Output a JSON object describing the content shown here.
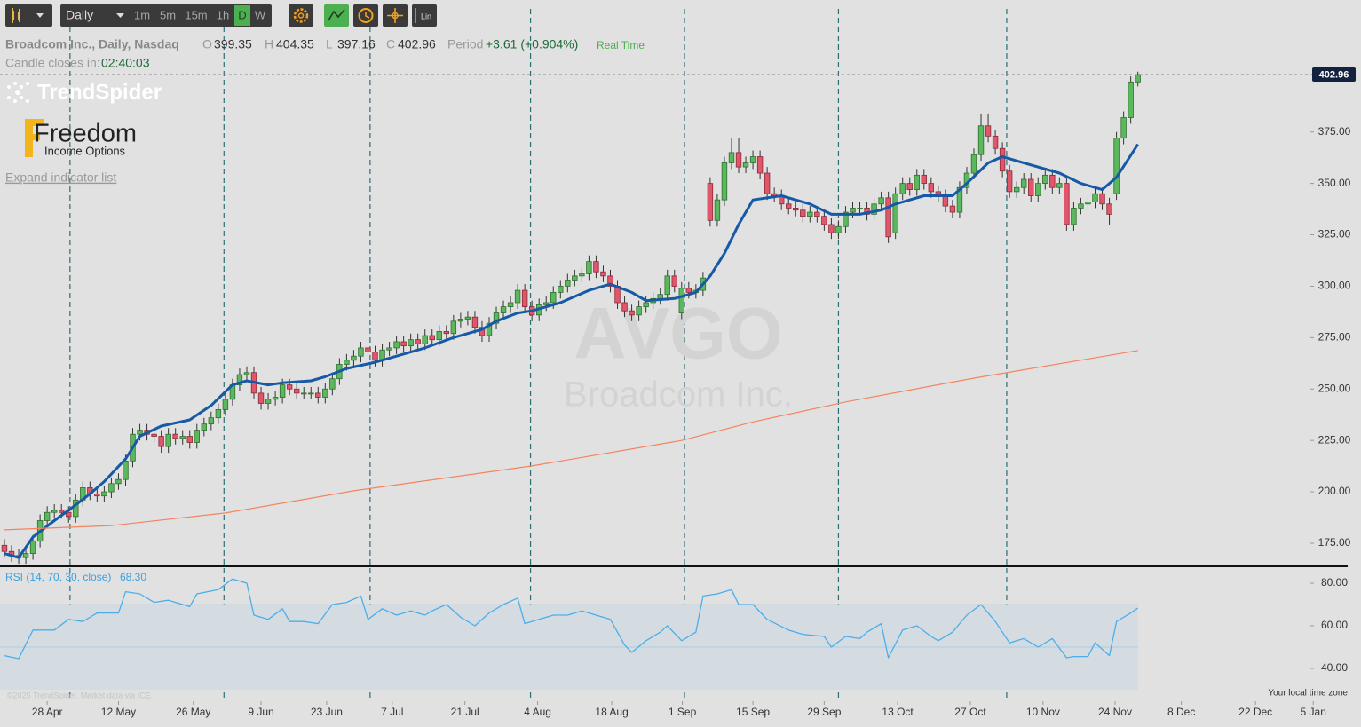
{
  "toolbar": {
    "interval": "Daily",
    "buttons": [
      "1m",
      "5m",
      "15m",
      "1h",
      "D",
      "W"
    ],
    "scale": "Lin"
  },
  "header": {
    "symbol": "Broadcom Inc., Daily, Nasdaq",
    "o_label": "O",
    "h_label": "H",
    "l_label": "L",
    "c_label": "C",
    "period_label": "Period",
    "period_change": "+3.61 (+0.904%)",
    "realtime": "Real Time",
    "countdown_label": "Candle closes in:",
    "countdown": "02:40:03"
  },
  "branding": {
    "spider": "TrendSpider",
    "freedom": "Freedom",
    "income": "Income Options",
    "expand": "Expand indicator list"
  },
  "watermark": {
    "ticker": "AVGO",
    "name": "Broadcom Inc."
  },
  "footer": {
    "copyright": "©2025 TrendSpider. Market data via ICE.",
    "timezone": "Your local time zone"
  },
  "chart_data": [
    {
      "type": "candlestick",
      "up_color": "#5cb85c",
      "down_color": "#e0566a",
      "open": [
        174,
        171,
        169,
        168,
        170,
        176,
        186,
        190,
        191,
        190,
        188,
        196,
        202,
        199,
        198,
        200,
        204,
        206,
        215,
        228,
        230,
        228,
        227,
        222,
        228,
        226,
        227,
        224,
        230,
        233,
        236,
        240,
        245,
        252,
        257,
        258,
        248,
        243,
        245,
        246,
        252,
        250,
        248,
        248,
        248,
        246,
        250,
        255,
        262,
        264,
        266,
        270,
        268,
        264,
        269,
        270,
        273,
        271,
        274,
        272,
        276,
        274,
        278,
        277,
        283,
        284,
        285,
        280,
        276,
        282,
        287,
        290,
        292,
        298,
        290,
        286,
        291,
        292,
        297,
        300,
        303,
        305,
        306,
        312,
        307,
        305,
        300,
        292,
        288,
        286,
        290,
        292,
        294,
        296,
        305,
        287,
        299,
        297,
        298,
        350,
        332,
        342,
        360,
        365,
        358,
        360,
        363,
        355,
        345,
        344,
        340,
        338,
        337,
        334,
        336,
        334,
        330,
        326,
        329,
        336,
        338,
        338,
        335,
        340,
        343,
        326,
        345,
        350,
        347,
        354,
        350,
        346,
        344,
        339,
        336,
        348,
        355,
        364,
        378,
        373,
        367,
        356,
        346,
        348,
        352,
        344,
        350,
        354,
        348,
        350,
        330,
        338,
        340,
        341,
        345,
        340,
        345,
        372,
        382,
        399.35
      ],
      "high": [
        177,
        174,
        172,
        173,
        179,
        189,
        193,
        194,
        194,
        193,
        199,
        205,
        205,
        202,
        203,
        207,
        209,
        218,
        231,
        233,
        233,
        231,
        230,
        231,
        231,
        230,
        230,
        233,
        236,
        239,
        243,
        248,
        255,
        260,
        261,
        261,
        251,
        248,
        249,
        255,
        255,
        253,
        251,
        251,
        251,
        253,
        258,
        265,
        267,
        269,
        273,
        273,
        271,
        272,
        273,
        276,
        276,
        277,
        277,
        279,
        279,
        281,
        281,
        286,
        287,
        288,
        288,
        283,
        285,
        290,
        293,
        295,
        301,
        301,
        293,
        294,
        295,
        300,
        303,
        306,
        308,
        309,
        315,
        315,
        310,
        308,
        303,
        295,
        291,
        293,
        295,
        297,
        299,
        308,
        308,
        302,
        302,
        301,
        307,
        353,
        345,
        363,
        372,
        372,
        363,
        366,
        366,
        358,
        348,
        347,
        343,
        341,
        340,
        339,
        339,
        337,
        333,
        332,
        339,
        341,
        341,
        341,
        343,
        346,
        346,
        348,
        353,
        353,
        357,
        357,
        353,
        349,
        347,
        342,
        351,
        358,
        367,
        384,
        384,
        376,
        370,
        359,
        351,
        355,
        355,
        353,
        357,
        357,
        353,
        353,
        341,
        343,
        344,
        348,
        348,
        343,
        375,
        385,
        402,
        404.35
      ],
      "low": [
        168,
        166,
        165,
        165,
        167,
        173,
        183,
        187,
        187,
        185,
        185,
        193,
        196,
        195,
        195,
        197,
        201,
        203,
        212,
        225,
        225,
        224,
        219,
        219,
        223,
        223,
        221,
        221,
        227,
        230,
        233,
        237,
        242,
        249,
        254,
        245,
        240,
        240,
        242,
        243,
        247,
        245,
        245,
        245,
        243,
        243,
        247,
        252,
        259,
        261,
        263,
        265,
        261,
        261,
        266,
        267,
        268,
        268,
        269,
        269,
        271,
        271,
        274,
        274,
        280,
        281,
        277,
        273,
        273,
        279,
        284,
        287,
        289,
        287,
        283,
        283,
        288,
        289,
        294,
        297,
        300,
        302,
        303,
        304,
        302,
        297,
        289,
        285,
        283,
        283,
        287,
        289,
        291,
        293,
        297,
        284,
        294,
        294,
        295,
        329,
        329,
        339,
        357,
        355,
        355,
        357,
        352,
        342,
        341,
        337,
        335,
        334,
        331,
        331,
        331,
        327,
        323,
        323,
        326,
        333,
        335,
        332,
        332,
        337,
        321,
        323,
        342,
        344,
        344,
        347,
        343,
        341,
        336,
        333,
        333,
        345,
        352,
        361,
        370,
        364,
        353,
        343,
        343,
        345,
        341,
        341,
        347,
        345,
        345,
        327,
        327,
        335,
        337,
        338,
        337,
        330,
        342,
        369,
        379,
        397.16
      ],
      "close": [
        171,
        169,
        168,
        170,
        176,
        186,
        190,
        191,
        190,
        188,
        196,
        202,
        199,
        198,
        200,
        204,
        206,
        215,
        228,
        230,
        228,
        227,
        222,
        228,
        226,
        227,
        224,
        230,
        233,
        236,
        240,
        245,
        252,
        257,
        258,
        248,
        243,
        245,
        246,
        252,
        250,
        248,
        248,
        248,
        246,
        250,
        255,
        262,
        264,
        266,
        270,
        268,
        264,
        269,
        270,
        273,
        271,
        274,
        272,
        276,
        274,
        278,
        277,
        283,
        284,
        285,
        280,
        276,
        282,
        287,
        290,
        292,
        298,
        290,
        286,
        291,
        292,
        297,
        300,
        303,
        305,
        306,
        312,
        307,
        305,
        300,
        292,
        288,
        286,
        290,
        292,
        294,
        296,
        305,
        300,
        299,
        297,
        298,
        304,
        332,
        342,
        360,
        365,
        358,
        360,
        363,
        355,
        345,
        344,
        340,
        338,
        337,
        334,
        336,
        334,
        330,
        326,
        329,
        336,
        338,
        338,
        335,
        340,
        343,
        324,
        345,
        350,
        347,
        354,
        350,
        346,
        344,
        339,
        336,
        348,
        355,
        364,
        378,
        373,
        367,
        356,
        346,
        348,
        352,
        344,
        350,
        354,
        348,
        350,
        330,
        338,
        340,
        341,
        345,
        340,
        335,
        372,
        382,
        399.35,
        402.96
      ],
      "overlays": [
        {
          "type": "line",
          "color": "#1659a6",
          "line_width": 3,
          "x": [
            0,
            2,
            4,
            7,
            9,
            12,
            14,
            17,
            19,
            22,
            26,
            29,
            32,
            34,
            37,
            39,
            43,
            45,
            48,
            52,
            55,
            59,
            63,
            67,
            69,
            72,
            74,
            78,
            82,
            85,
            88,
            90,
            94,
            97,
            99,
            101,
            103,
            105,
            109,
            113,
            116,
            120,
            123,
            125,
            129,
            133,
            135,
            138,
            140,
            144,
            148,
            151,
            154,
            156,
            159
          ],
          "values": [
            170,
            168,
            178,
            186,
            191,
            199,
            205,
            216,
            227,
            232,
            235,
            242,
            252,
            254,
            252,
            253,
            254,
            256,
            260,
            263,
            266,
            270,
            275,
            279,
            283,
            287,
            288,
            292,
            298,
            301,
            297,
            293,
            294,
            297,
            305,
            316,
            330,
            342,
            344,
            340,
            335,
            335,
            337,
            340,
            344,
            344,
            350,
            360,
            363,
            359,
            355,
            350,
            347,
            353,
            369
          ]
        },
        {
          "type": "line",
          "color": "#f4845f",
          "line_width": 1.2,
          "x": [
            0,
            15,
            31,
            49,
            74,
            95,
            105,
            118,
            136,
            159
          ],
          "values": [
            181.5,
            183.6,
            189.7,
            200.5,
            212.6,
            225,
            234,
            243.7,
            255.3,
            268.7
          ]
        }
      ],
      "event_lines": [
        9.2,
        30.8,
        51.3,
        73.8,
        95.4,
        117,
        140.6
      ],
      "xlim": [
        -0.62,
        190.3
      ],
      "ylim": [
        164.2,
        439.2
      ],
      "yticks": [
        {
          "value": 175,
          "label": "175.00"
        },
        {
          "value": 200,
          "label": "200.00"
        },
        {
          "value": 225,
          "label": "225.00"
        },
        {
          "value": 250,
          "label": "250.00"
        },
        {
          "value": 275,
          "label": "275.00"
        },
        {
          "value": 300,
          "label": "300.00"
        },
        {
          "value": 325,
          "label": "325.00"
        },
        {
          "value": 350,
          "label": "350.00"
        },
        {
          "value": 375,
          "label": "375.00"
        }
      ]
    },
    {
      "type": "line",
      "label": "RSI (14, 70, 30, close)",
      "color": "#4aaeea",
      "value_label": "68.30",
      "x": [
        0,
        2,
        4,
        7,
        9,
        11,
        13,
        16,
        17,
        19,
        21,
        23,
        26,
        27,
        30,
        32,
        34,
        35,
        37,
        39,
        40,
        42,
        44,
        46,
        48,
        50,
        51,
        53,
        55,
        57,
        59,
        60,
        62,
        64,
        66,
        68,
        70,
        72,
        73,
        75,
        77,
        79,
        81,
        83,
        85,
        87,
        88,
        90,
        92,
        93,
        95,
        97,
        98,
        100,
        102,
        103,
        105,
        107,
        110,
        112,
        115,
        116,
        118,
        120,
        121,
        123,
        124,
        126,
        128,
        130,
        131,
        133,
        135,
        137,
        139,
        141,
        143,
        145,
        147,
        149,
        150,
        152,
        153,
        155,
        156,
        158,
        159
      ],
      "values": [
        46,
        44.6,
        58,
        58,
        63,
        62,
        66,
        66,
        76,
        75,
        71,
        72,
        69,
        75,
        77,
        82,
        80,
        65,
        63,
        68,
        62,
        62,
        61,
        70,
        71,
        74,
        63,
        68,
        65,
        67,
        65,
        67,
        70,
        64,
        60,
        66,
        70,
        73,
        61,
        63,
        65,
        65,
        67,
        65,
        63,
        51,
        47.5,
        53,
        57,
        60,
        53,
        57,
        74,
        75,
        77,
        70,
        70,
        63,
        58,
        56,
        55,
        50,
        55,
        54,
        57,
        61,
        45,
        58,
        60,
        55,
        53,
        57,
        65,
        70,
        62,
        52,
        54,
        50,
        54,
        45,
        45.6,
        45.6,
        52,
        46,
        62,
        66,
        68.3
      ],
      "bands": [
        30,
        70
      ],
      "midline": 50,
      "xlim": [
        -0.62,
        190.3
      ],
      "ylim": [
        24.6,
        87.1
      ],
      "yticks": [
        {
          "value": 40,
          "label": "40.00"
        },
        {
          "value": 60,
          "label": "60.00"
        },
        {
          "value": 80,
          "label": "80.00"
        }
      ],
      "xticks": [
        {
          "value": 6,
          "label": "28 Apr"
        },
        {
          "value": 16,
          "label": "12 May"
        },
        {
          "value": 26.5,
          "label": "26 May"
        },
        {
          "value": 36,
          "label": "9 Jun"
        },
        {
          "value": 45.2,
          "label": "23 Jun"
        },
        {
          "value": 54.4,
          "label": "7 Jul"
        },
        {
          "value": 64.6,
          "label": "21 Jul"
        },
        {
          "value": 74.8,
          "label": "4 Aug"
        },
        {
          "value": 85.2,
          "label": "18 Aug"
        },
        {
          "value": 95.1,
          "label": "1 Sep"
        },
        {
          "value": 105,
          "label": "15 Sep"
        },
        {
          "value": 115,
          "label": "29 Sep"
        },
        {
          "value": 125.3,
          "label": "13 Oct"
        },
        {
          "value": 135.5,
          "label": "27 Oct"
        },
        {
          "value": 145.7,
          "label": "10 Nov"
        },
        {
          "value": 155.8,
          "label": "24 Nov"
        },
        {
          "value": 165.1,
          "label": "8 Dec"
        },
        {
          "value": 175.5,
          "label": "22 Dec"
        },
        {
          "value": 183.6,
          "label": "5 Jan"
        }
      ]
    }
  ]
}
